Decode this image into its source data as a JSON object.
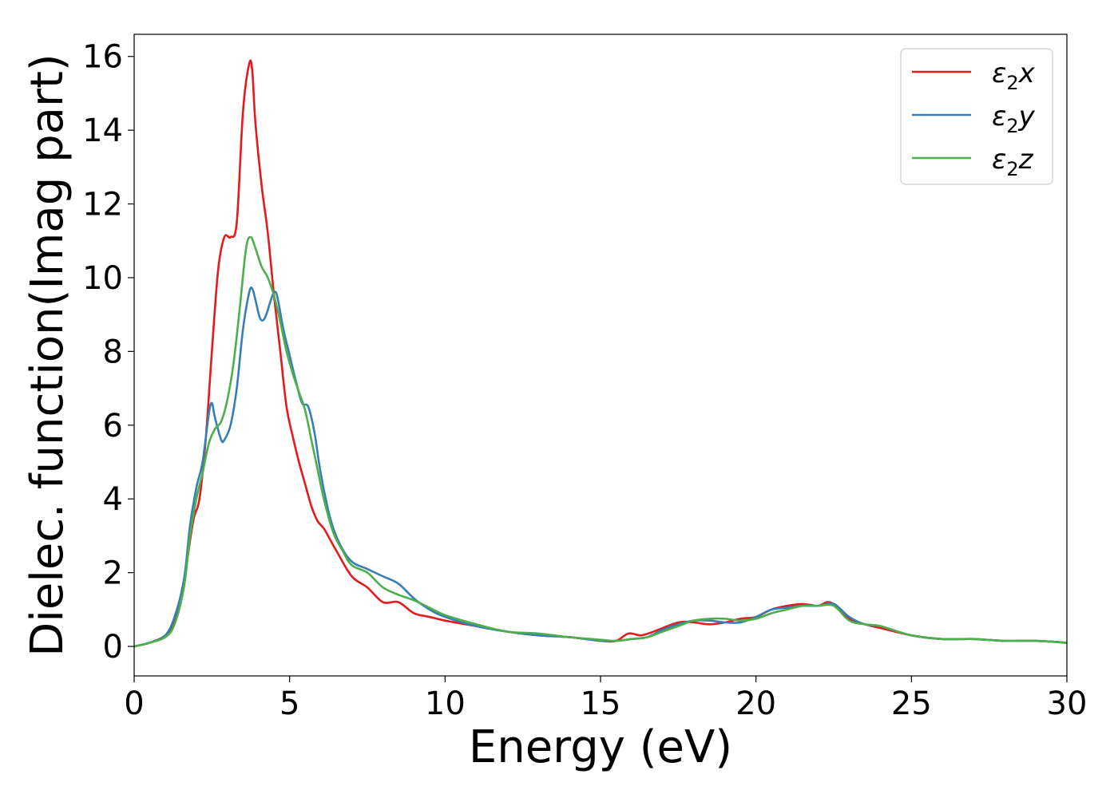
{
  "chart_data": {
    "type": "line",
    "title": "",
    "xlabel": "Energy (eV)",
    "ylabel": "Dielec. function(Imag part)",
    "xlim": [
      0,
      30
    ],
    "ylim": [
      -0.8,
      16.6
    ],
    "xticks": [
      0,
      5,
      10,
      15,
      20,
      25,
      30
    ],
    "yticks": [
      0,
      2,
      4,
      6,
      8,
      10,
      12,
      14,
      16
    ],
    "grid": false,
    "legend_position": "top-right",
    "series": [
      {
        "name": "ε2x",
        "legend": {
          "sym": "ε",
          "sub": "2",
          "var": "x"
        },
        "color": "#e41a1c",
        "x": [
          0,
          0.5,
          1.0,
          1.3,
          1.6,
          1.9,
          2.1,
          2.3,
          2.5,
          2.7,
          2.9,
          3.1,
          3.3,
          3.5,
          3.7,
          3.8,
          3.9,
          4.1,
          4.3,
          4.5,
          4.7,
          4.9,
          5.1,
          5.3,
          5.5,
          5.7,
          5.9,
          6.1,
          6.3,
          6.5,
          7.0,
          7.5,
          8.0,
          8.5,
          9.0,
          9.5,
          10.0,
          11.0,
          12.0,
          13.0,
          14.0,
          15.0,
          15.5,
          15.9,
          16.3,
          16.7,
          17.5,
          18.0,
          18.5,
          19.0,
          19.5,
          20.0,
          20.5,
          21.0,
          21.5,
          22.0,
          22.3,
          22.6,
          23.0,
          23.5,
          24.0,
          25.0,
          26.0,
          27.0,
          28.0,
          29.0,
          30.0
        ],
        "y": [
          0,
          0.1,
          0.3,
          0.7,
          1.8,
          3.4,
          4.0,
          5.6,
          8.0,
          10.2,
          11.1,
          11.1,
          11.5,
          14.5,
          15.8,
          15.6,
          14.2,
          12.5,
          11.2,
          9.5,
          8.0,
          6.5,
          5.7,
          5.0,
          4.4,
          3.8,
          3.4,
          3.2,
          2.9,
          2.6,
          1.9,
          1.6,
          1.2,
          1.2,
          0.9,
          0.8,
          0.7,
          0.55,
          0.4,
          0.3,
          0.25,
          0.15,
          0.15,
          0.35,
          0.3,
          0.4,
          0.65,
          0.65,
          0.6,
          0.65,
          0.75,
          0.8,
          1.0,
          1.1,
          1.15,
          1.1,
          1.2,
          1.1,
          0.75,
          0.6,
          0.5,
          0.3,
          0.2,
          0.2,
          0.15,
          0.15,
          0.1
        ]
      },
      {
        "name": "ε2y",
        "legend": {
          "sym": "ε",
          "sub": "2",
          "var": "y"
        },
        "color": "#377eb8",
        "x": [
          0,
          0.5,
          1.0,
          1.3,
          1.6,
          1.8,
          2.0,
          2.2,
          2.4,
          2.5,
          2.6,
          2.8,
          2.9,
          3.1,
          3.3,
          3.5,
          3.7,
          3.8,
          3.9,
          4.05,
          4.2,
          4.4,
          4.5,
          4.6,
          4.8,
          5.0,
          5.2,
          5.4,
          5.6,
          5.8,
          6.0,
          6.3,
          6.6,
          7.0,
          7.5,
          8.0,
          8.5,
          9.0,
          9.5,
          10.0,
          11.0,
          12.0,
          13.0,
          14.0,
          15.0,
          15.5,
          16.0,
          16.5,
          17.0,
          17.5,
          18.0,
          18.5,
          19.0,
          19.5,
          20.0,
          20.5,
          21.0,
          21.5,
          22.0,
          22.5,
          23.0,
          23.5,
          24.0,
          25.0,
          26.0,
          27.0,
          28.0,
          29.0,
          30.0
        ],
        "y": [
          0,
          0.1,
          0.3,
          0.8,
          1.8,
          3.3,
          4.3,
          5.0,
          6.3,
          6.6,
          6.2,
          5.6,
          5.6,
          6.0,
          7.0,
          8.6,
          9.6,
          9.7,
          9.4,
          8.9,
          8.9,
          9.4,
          9.6,
          9.5,
          8.6,
          7.9,
          7.2,
          6.6,
          6.5,
          5.8,
          4.7,
          3.5,
          2.8,
          2.3,
          2.1,
          1.9,
          1.7,
          1.3,
          1.0,
          0.8,
          0.55,
          0.4,
          0.3,
          0.25,
          0.15,
          0.15,
          0.2,
          0.25,
          0.45,
          0.6,
          0.7,
          0.7,
          0.65,
          0.65,
          0.8,
          1.0,
          1.05,
          1.1,
          1.1,
          1.15,
          0.8,
          0.6,
          0.55,
          0.3,
          0.2,
          0.2,
          0.15,
          0.15,
          0.1
        ]
      },
      {
        "name": "ε2z",
        "legend": {
          "sym": "ε",
          "sub": "2",
          "var": "z"
        },
        "color": "#4daf4a",
        "x": [
          0,
          0.5,
          1.0,
          1.3,
          1.6,
          1.8,
          2.0,
          2.2,
          2.4,
          2.6,
          2.8,
          3.0,
          3.2,
          3.4,
          3.6,
          3.75,
          3.9,
          4.1,
          4.3,
          4.5,
          4.7,
          4.9,
          5.1,
          5.3,
          5.5,
          5.7,
          5.9,
          6.1,
          6.4,
          6.7,
          7.0,
          7.5,
          8.0,
          8.5,
          9.0,
          9.5,
          10.0,
          11.0,
          12.0,
          13.0,
          14.0,
          15.0,
          15.5,
          16.0,
          16.5,
          17.0,
          17.5,
          18.0,
          18.5,
          19.0,
          19.5,
          20.0,
          20.5,
          21.0,
          21.5,
          22.0,
          22.5,
          23.0,
          23.5,
          24.0,
          25.0,
          26.0,
          27.0,
          28.0,
          29.0,
          30.0
        ],
        "y": [
          0,
          0.1,
          0.25,
          0.6,
          1.6,
          3.0,
          4.0,
          4.7,
          5.5,
          5.9,
          6.1,
          6.7,
          7.7,
          9.2,
          10.8,
          11.1,
          10.8,
          10.3,
          10.0,
          9.5,
          8.8,
          8.0,
          7.4,
          6.9,
          6.4,
          5.6,
          4.8,
          4.0,
          3.1,
          2.6,
          2.2,
          2.0,
          1.6,
          1.4,
          1.25,
          1.05,
          0.85,
          0.6,
          0.4,
          0.35,
          0.25,
          0.18,
          0.15,
          0.2,
          0.25,
          0.4,
          0.55,
          0.7,
          0.75,
          0.75,
          0.7,
          0.75,
          0.9,
          1.0,
          1.1,
          1.1,
          1.1,
          0.7,
          0.6,
          0.55,
          0.3,
          0.2,
          0.2,
          0.15,
          0.15,
          0.1
        ]
      }
    ]
  }
}
